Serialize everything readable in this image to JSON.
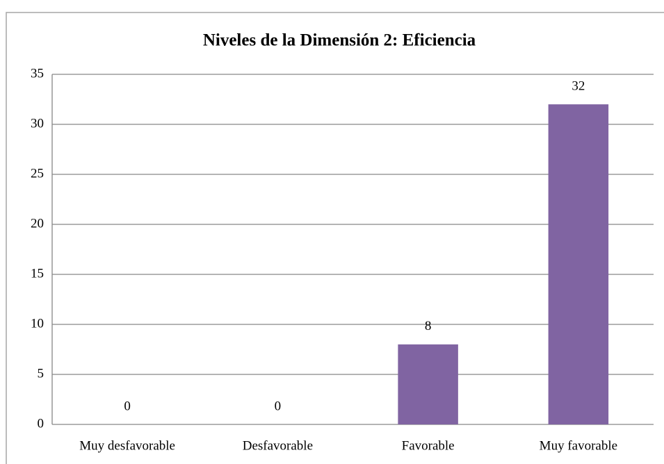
{
  "chart_data": {
    "type": "bar",
    "title": "Niveles de la Dimensión 2: Eficiencia",
    "categories": [
      "Muy desfavorable",
      "Desfavorable",
      "Favorable",
      "Muy favorable"
    ],
    "values": [
      0,
      0,
      8,
      32
    ],
    "color": "#8064a2",
    "ylim": [
      0,
      35
    ],
    "yticks": [
      0,
      5,
      10,
      15,
      20,
      25,
      30,
      35
    ],
    "grid": true
  }
}
